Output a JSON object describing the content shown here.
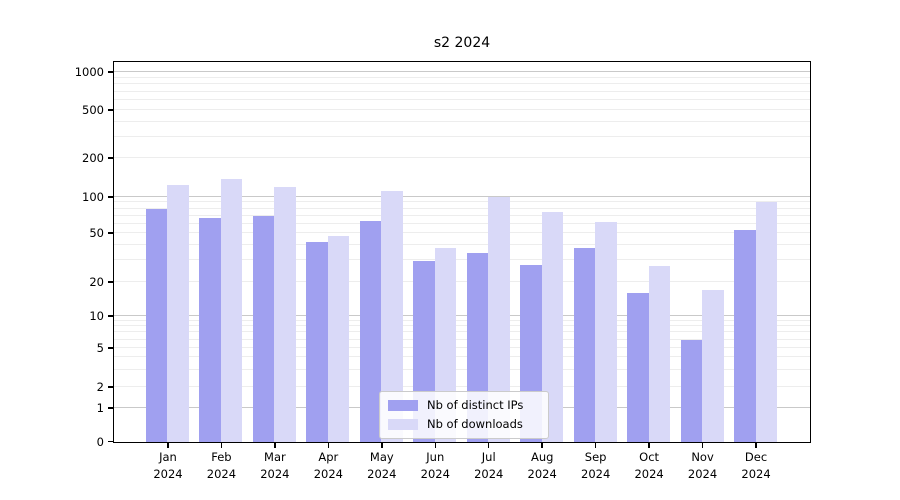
{
  "chart_data": {
    "type": "bar",
    "title": "s2 2024",
    "categories": [
      "Jan",
      "Feb",
      "Mar",
      "Apr",
      "May",
      "Jun",
      "Jul",
      "Aug",
      "Sep",
      "Oct",
      "Nov",
      "Dec"
    ],
    "category_year": "2024",
    "series": [
      {
        "name": "Nb of distinct IPs",
        "color": "#a0a0f0",
        "values": [
          80,
          67,
          70,
          43,
          64,
          30,
          35,
          28,
          38,
          16,
          6,
          53
        ]
      },
      {
        "name": "Nb of downloads",
        "color": "#d9d9f8",
        "values": [
          125,
          138,
          120,
          48,
          112,
          38,
          101,
          75,
          62,
          27,
          17,
          92
        ]
      }
    ],
    "yscale": "symlog",
    "y_ticks": [
      0,
      1,
      2,
      5,
      10,
      20,
      50,
      100,
      200,
      500,
      1000
    ],
    "ylim": [
      0,
      1400
    ],
    "grid": true,
    "legend_position": "lower-center"
  },
  "colors": {
    "background": "#ffffff",
    "axis": "#000000",
    "major_grid": "#c9c9c9",
    "minor_grid": "#ededed",
    "legend_border": "#cbcbcb"
  }
}
